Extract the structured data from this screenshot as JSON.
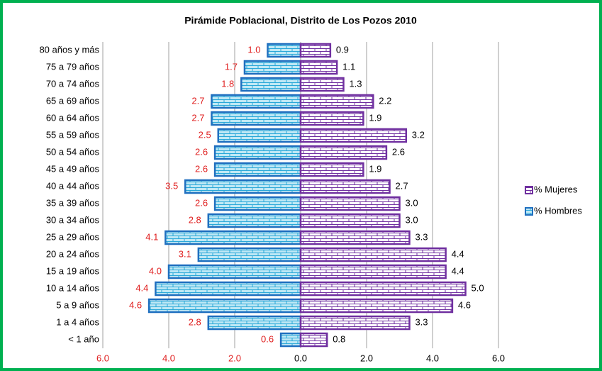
{
  "chart_data": {
    "type": "pyramid",
    "title": "Pirámide Poblacional, Distrito de Los Pozos 2010",
    "categories": [
      "80 años y más",
      "75 a 79 años",
      "70 a 74 años",
      "65 a 69 años",
      "60 a 64 años",
      "55 a 59 años",
      "50 a 54 años",
      "45 a 49 años",
      "40 a 44 años",
      "35 a 39 años",
      "30 a 34 años",
      "25 a 29 años",
      "20 a 24 años",
      "15 a 19 años",
      "10 a 14 años",
      "5 a 9 años",
      "1 a 4 años",
      "< 1 año"
    ],
    "series": [
      {
        "name": "% Hombres",
        "color": "#1f6fbf",
        "label_color": "#e02020",
        "values": [
          -1.0,
          -1.7,
          -1.8,
          -2.7,
          -2.7,
          -2.5,
          -2.6,
          -2.6,
          -3.5,
          -2.6,
          -2.8,
          -4.1,
          -3.1,
          -4.0,
          -4.4,
          -4.6,
          -2.8,
          -0.6
        ],
        "value_labels": [
          "1.0",
          "1.7",
          "1.8",
          "2.7",
          "2.7",
          "2.5",
          "2.6",
          "2.6",
          "3.5",
          "2.6",
          "2.8",
          "4.1",
          "3.1",
          "4.0",
          "4.4",
          "4.6",
          "2.8",
          "0.6"
        ]
      },
      {
        "name": "% Mujeres",
        "color": "#7030a0",
        "label_color": "#000000",
        "values": [
          0.9,
          1.1,
          1.3,
          2.2,
          1.9,
          3.2,
          2.6,
          1.9,
          2.7,
          3.0,
          3.0,
          3.3,
          4.4,
          4.4,
          5.0,
          4.6,
          3.3,
          0.8
        ],
        "value_labels": [
          "0.9",
          "1.1",
          "1.3",
          "2.2",
          "1.9",
          "3.2",
          "2.6",
          "1.9",
          "2.7",
          "3.0",
          "3.0",
          "3.3",
          "4.4",
          "4.4",
          "5.0",
          "4.6",
          "3.3",
          "0.8"
        ]
      }
    ],
    "xlim": [
      -6,
      6
    ],
    "xticks": [
      {
        "value": -6,
        "label": "6.0"
      },
      {
        "value": -4,
        "label": "4.0"
      },
      {
        "value": -2,
        "label": "2.0"
      },
      {
        "value": 0,
        "label": "0.0"
      },
      {
        "value": 2,
        "label": "2.0"
      },
      {
        "value": 4,
        "label": "4.0"
      },
      {
        "value": 6,
        "label": "6.0"
      }
    ],
    "grid": true,
    "legend": "right"
  }
}
